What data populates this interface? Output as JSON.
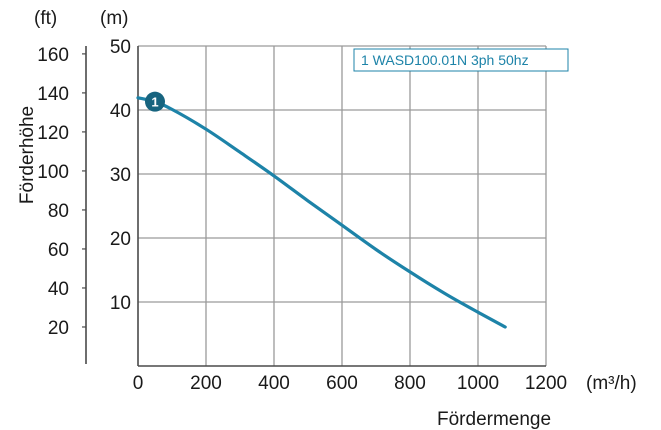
{
  "chart_data": {
    "type": "line",
    "xlabel": "Fördermenge",
    "ylabel": "Förderhöhe",
    "x_unit": "(m³/h)",
    "y_unit_left": "(ft)",
    "y_unit_right": "(m)",
    "xlim": [
      0,
      1200
    ],
    "ylim": [
      0,
      50
    ],
    "x_ticks": [
      "0",
      "200",
      "400",
      "600",
      "800",
      "1000",
      "1200"
    ],
    "y_ticks_m": [
      "10",
      "20",
      "30",
      "40",
      "50"
    ],
    "y_ticks_ft": [
      "20",
      "40",
      "60",
      "80",
      "100",
      "120",
      "140",
      "160"
    ],
    "grid": true,
    "legend_position": "top-right",
    "line_color": "#1d83a8",
    "series": [
      {
        "name": "1 WASD100.01N 3ph 50hz",
        "marker": "1",
        "x": [
          0,
          50,
          100,
          200,
          300,
          400,
          500,
          600,
          700,
          800,
          900,
          1000,
          1080
        ],
        "y": [
          41.9,
          41.3,
          40.1,
          37.0,
          33.4,
          29.7,
          25.8,
          22.0,
          18.2,
          14.7,
          11.4,
          8.4,
          6.1
        ]
      }
    ]
  }
}
